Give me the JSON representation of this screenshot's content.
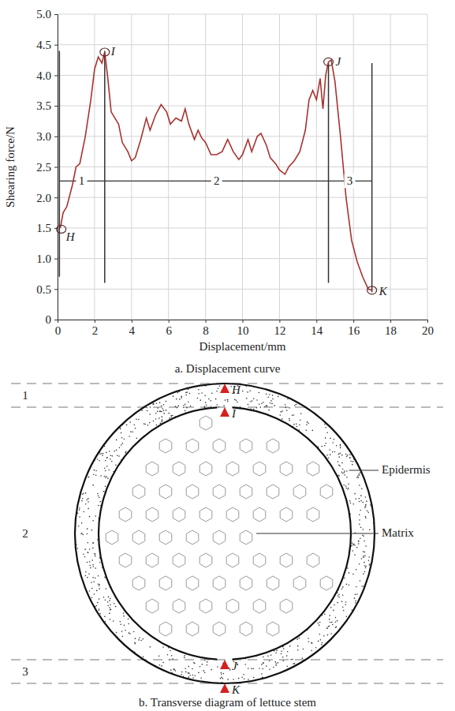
{
  "chart_data": {
    "type": "line",
    "title": "a. Displacement curve",
    "x_label": "Displacement/mm",
    "y_label": "Shearing force/N",
    "color": "#a8322f",
    "x": [
      0.15,
      0.3,
      0.5,
      0.8,
      1.0,
      1.2,
      1.5,
      1.8,
      2.0,
      2.2,
      2.4,
      2.55,
      2.7,
      2.9,
      3.1,
      3.3,
      3.5,
      3.8,
      4.0,
      4.2,
      4.5,
      4.8,
      5.0,
      5.3,
      5.6,
      5.9,
      6.1,
      6.4,
      6.7,
      6.9,
      7.1,
      7.4,
      7.6,
      7.8,
      8.0,
      8.3,
      8.6,
      8.9,
      9.2,
      9.5,
      9.8,
      10.0,
      10.3,
      10.5,
      10.8,
      11.0,
      11.3,
      11.5,
      11.8,
      12.0,
      12.3,
      12.5,
      12.8,
      13.1,
      13.4,
      13.6,
      13.8,
      14.0,
      14.2,
      14.35,
      14.5,
      14.65,
      14.8,
      15.0,
      15.3,
      15.6,
      15.9,
      16.2,
      16.5,
      16.8,
      17.0
    ],
    "values": [
      1.5,
      1.75,
      1.85,
      2.2,
      2.5,
      2.55,
      3.0,
      3.6,
      4.1,
      4.3,
      4.2,
      4.38,
      4.0,
      3.4,
      3.3,
      3.2,
      2.9,
      2.75,
      2.6,
      2.65,
      2.95,
      3.3,
      3.1,
      3.35,
      3.52,
      3.4,
      3.2,
      3.3,
      3.25,
      3.45,
      3.2,
      2.95,
      3.1,
      2.97,
      2.9,
      2.7,
      2.7,
      2.75,
      2.95,
      2.75,
      2.62,
      2.7,
      2.95,
      2.75,
      3.0,
      3.05,
      2.85,
      2.65,
      2.55,
      2.45,
      2.38,
      2.5,
      2.6,
      2.75,
      3.1,
      3.6,
      3.75,
      3.6,
      3.95,
      3.45,
      4.0,
      4.22,
      4.25,
      3.9,
      3.0,
      2.0,
      1.3,
      0.95,
      0.7,
      0.5,
      0.48
    ],
    "xlim": [
      0,
      20
    ],
    "xticks": [
      0,
      2,
      4,
      6,
      8,
      10,
      12,
      14,
      16,
      18,
      20
    ],
    "ylim": [
      0,
      5
    ],
    "yticks": [
      0,
      0.5,
      {
        "value": 1,
        "label": "1.0"
      },
      1.5,
      {
        "value": 2,
        "label": "2.0"
      },
      2.5,
      {
        "value": 3,
        "label": "3.0"
      },
      3.5,
      {
        "value": 4,
        "label": "4.0"
      },
      4.5,
      {
        "value": 5,
        "label": "5.0"
      }
    ],
    "grid": true,
    "annotations": [
      {
        "label": "H",
        "x": 0.2,
        "y": 1.48
      },
      {
        "label": "I",
        "x": 2.55,
        "y": 4.38
      },
      {
        "label": "J",
        "x": 14.65,
        "y": 4.22
      },
      {
        "label": "K",
        "x": 17.0,
        "y": 0.48
      }
    ],
    "stage_bounds": [
      {
        "x": 0.1,
        "y": [
          0.7,
          4.4
        ]
      },
      {
        "x": 2.55,
        "y": [
          0.6,
          4.4
        ]
      },
      {
        "x": 14.65,
        "y": [
          0.6,
          4.2
        ]
      },
      {
        "x": 17.0,
        "y": [
          0.45,
          4.2
        ]
      }
    ],
    "stages": {
      "y": 2.27,
      "labels": [
        {
          "label": "1",
          "x": 1.3
        },
        {
          "label": "2",
          "x": 8.6
        },
        {
          "label": "3",
          "x": 15.8
        }
      ]
    }
  },
  "diagram": {
    "title": "b. Transverse diagram of lettuce stem",
    "zones": [
      "1",
      "2",
      "3"
    ],
    "points": [
      "H",
      "I",
      "J",
      "K"
    ],
    "parts": [
      "Epidermis",
      "Matrix"
    ]
  }
}
